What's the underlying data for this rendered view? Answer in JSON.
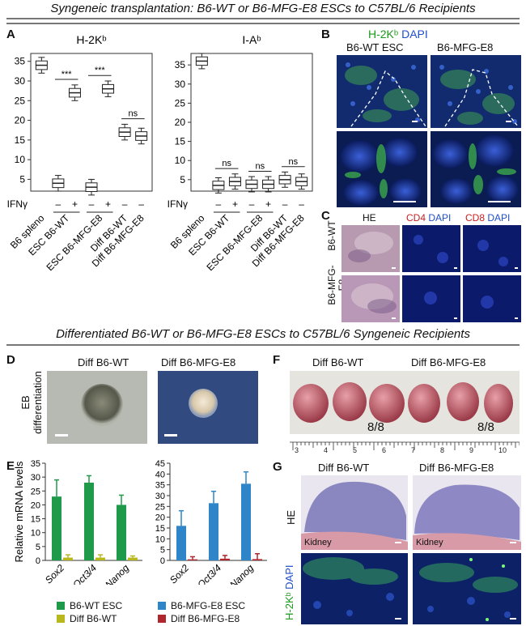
{
  "headers": {
    "top": "Syngeneic transplantation: B6-WT or B6-MFG-E8 ESCs to C57BL/6 Recipients",
    "bottom": "Differentiated B6-WT or B6-MFG-E8 ESCs to C57BL/6 Syngeneic Recipients"
  },
  "panels": {
    "A": "A",
    "B": "B",
    "C": "C",
    "D": "D",
    "E": "E",
    "F": "F",
    "G": "G"
  },
  "chart_data": [
    {
      "type": "box",
      "title": "H-2Kᵇ",
      "categories": [
        "B6 spleno",
        "ESC B6-WT",
        "ESC B6-WT",
        "ESC B6-MFG-E8",
        "ESC B6-MFG-E8",
        "Diff B6-WT",
        "Diff B6-MFG-E8"
      ],
      "ifn": [
        "–",
        "–",
        "+",
        "–",
        "+",
        "–",
        "–"
      ],
      "medians": [
        34,
        4,
        27,
        3,
        28,
        17,
        16
      ],
      "ylim": [
        2,
        37
      ],
      "yticks": [
        5,
        10,
        15,
        20,
        25,
        30,
        35
      ],
      "significance": [
        "***",
        "***",
        "ns"
      ]
    },
    {
      "type": "box",
      "title": "I-Aᵇ",
      "categories": [
        "B6 spleno",
        "ESC B6-WT",
        "ESC B6-WT",
        "ESC B6-MFG-E8",
        "ESC B6-MFG-E8",
        "Diff B6-WT",
        "Diff B6-MFG-E8"
      ],
      "ifn": [
        "–",
        "–",
        "+",
        "–",
        "+",
        "–",
        "–"
      ],
      "medians": [
        36,
        3.5,
        4.5,
        3.8,
        3.8,
        5,
        4.5
      ],
      "ylim": [
        2,
        38
      ],
      "yticks": [
        5,
        10,
        15,
        20,
        25,
        30,
        35
      ],
      "significance": [
        "ns",
        "ns",
        "ns"
      ]
    },
    {
      "type": "bar",
      "ylabel": "Relative mRNA levels",
      "categories": [
        "Sox2",
        "Oct3/4",
        "Nanog"
      ],
      "ylim": [
        0,
        35
      ],
      "yticks": [
        0,
        5,
        10,
        15,
        20,
        25,
        30,
        35
      ],
      "series": [
        {
          "name": "B6-WT ESC",
          "values": [
            23,
            28,
            20
          ],
          "errors": [
            6,
            2.5,
            3.5
          ],
          "color": "#1f9a4a"
        },
        {
          "name": "Diff B6-WT",
          "values": [
            1,
            1,
            1
          ],
          "errors": [
            1,
            1,
            0.6
          ],
          "color": "#b8b81c"
        }
      ]
    },
    {
      "type": "bar",
      "categories": [
        "Sox2",
        "Oct3/4",
        "Nanog"
      ],
      "ylim": [
        0,
        45
      ],
      "yticks": [
        0,
        5,
        10,
        15,
        20,
        25,
        30,
        35,
        40,
        45
      ],
      "series": [
        {
          "name": "B6-MFG-E8 ESC",
          "values": [
            16,
            26.5,
            35.5
          ],
          "errors": [
            7,
            5.5,
            5.5
          ],
          "color": "#2e86c8"
        },
        {
          "name": "Diff B6-MFG-E8",
          "values": [
            0.5,
            0.8,
            0.6
          ],
          "errors": [
            1.2,
            1.5,
            2.5
          ],
          "color": "#b0262c"
        }
      ]
    }
  ],
  "ifn_label": "IFNγ",
  "panelB": {
    "title_a": "H-2Kᵇ",
    "title_b": "DAPI",
    "col1": "B6-WT ESC",
    "col2": "B6-MFG-E8"
  },
  "panelC": {
    "he": "HE",
    "cd4": "CD4",
    "cd8": "CD8",
    "dapi": "DAPI",
    "row1": "B6-WT",
    "row2": "B6-MFG-E8"
  },
  "panelD": {
    "col1": "Diff B6-WT",
    "col2": "Diff B6-MFG-E8",
    "side": "EB differentiation"
  },
  "panelF": {
    "col1": "Diff B6-WT",
    "col2": "Diff B6-MFG-E8",
    "count1": "8/8",
    "count2": "8/8",
    "ruler": [
      "3",
      "4",
      "5",
      "6",
      "7",
      "8",
      "9",
      "10"
    ]
  },
  "panelG": {
    "col1": "Diff B6-WT",
    "col2": "Diff B6-MFG-E8",
    "he": "HE",
    "kidney": "Kidney",
    "h2k": "H-2Kᵇ",
    "dapi": "DAPI"
  }
}
